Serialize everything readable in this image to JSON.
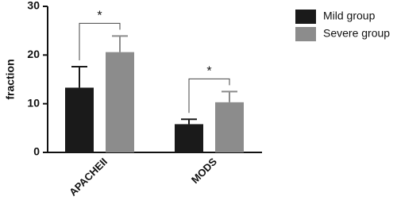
{
  "chart_data": {
    "type": "bar",
    "y_label": "fraction",
    "categories": [
      "APACHEII",
      "MODS"
    ],
    "series": [
      {
        "name": "Mild group",
        "color": "#1a1a1a",
        "values": [
          13.3,
          5.8
        ],
        "errors": [
          4.3,
          1.0
        ]
      },
      {
        "name": "Severe group",
        "color": "#8c8c8c",
        "values": [
          20.6,
          10.3
        ],
        "errors": [
          3.3,
          2.2
        ]
      }
    ],
    "significance": [
      "*",
      "*"
    ],
    "ylim": [
      0,
      30
    ],
    "yticks": [
      0,
      10,
      20,
      30
    ]
  }
}
